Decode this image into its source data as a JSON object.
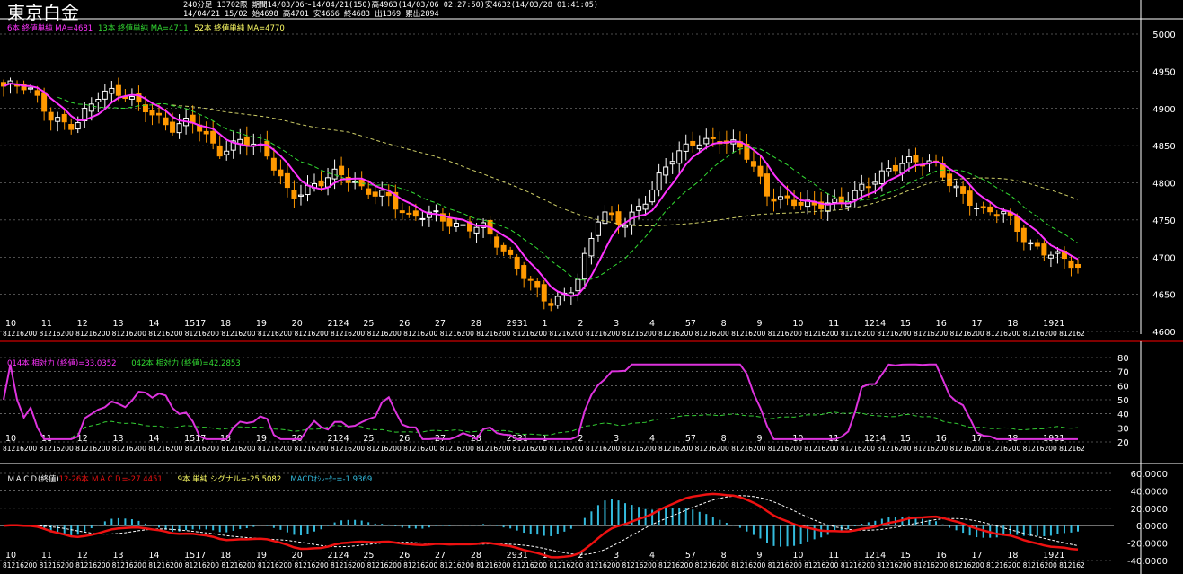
{
  "title": "東京白金",
  "header": {
    "line1": "240分足  13702限   期間14/03/06～14/04/21(150)高4963(14/03/06 02:27:50)安4632(14/03/28 01:41:05)",
    "line2": "14/04/21 15/02 始4698 高4701 安4666 終4683 出1369 累出2894"
  },
  "colors": {
    "background": "#000000",
    "up_candle": "#ffffff",
    "down_candle": "#ff9900",
    "ma6": "#ff33ff",
    "ma13": "#33dd33",
    "ma52": "#cccc66",
    "rsi14": "#dd33dd",
    "rsi42": "#33cc33",
    "macd": "#ee1111",
    "signal": "#ffffff",
    "histogram": "#33bbdd",
    "grid": "#9a9a9a",
    "axis": "#ffffff",
    "separator": "#ff0000"
  },
  "legends": {
    "price": [
      {
        "text": "6本 終値単純 MA=4681",
        "color": "#ff33ff"
      },
      {
        "text": "13本 終値単純 MA=4711",
        "color": "#33dd33"
      },
      {
        "text": "52本 終値単純 MA=4770",
        "color": "#ffff66"
      }
    ],
    "rsi": [
      {
        "text": "014本 相対力 (終値)=33.0352",
        "color": "#ff33ff"
      },
      {
        "text": "042本 相対力 (終値)=42.2853",
        "color": "#33dd33"
      }
    ],
    "macd": [
      {
        "text": "ＭＡＣＤ(終値)",
        "color": "#ffffff"
      },
      {
        "text": "12-26本 ＭＡＣＤ=-27.4451",
        "color": "#ee1111"
      },
      {
        "text": "9本 単純 シグナル=-25.5082",
        "color": "#ffff66"
      },
      {
        "text": "MACDｵｼﾚｰﾀｰ=-1.9369",
        "color": "#33bbdd"
      }
    ]
  },
  "axis": {
    "date_labels": [
      "10",
      "11",
      "12",
      "13",
      "14",
      "1517",
      "18",
      "19",
      "20",
      "2124",
      "25",
      "26",
      "27",
      "28",
      "2931",
      "1",
      "2",
      "3",
      "4",
      "57",
      "8",
      "9",
      "10",
      "11",
      "1214",
      "15",
      "16",
      "17",
      "18",
      "1921"
    ],
    "hour_strip": "81216200 81216200 81216200 81216200 81216200 81216200 81216200 81216200 81216200 81216200 81216200 81216200 81216200 81216200 81216200 81216200 81216200 81216200 81216200 81216200 81216200 81216200 81216200 81216200 81216200 81216200 81216200 81216200 81216200 812162"
  },
  "chart_data": [
    {
      "type": "candlestick",
      "panel": "price",
      "ylim": [
        4600,
        5000
      ],
      "y_ticks": [
        5000,
        4950,
        4900,
        4850,
        4800,
        4750,
        4700,
        4650,
        4600
      ],
      "key_closes": [
        4930,
        4925,
        4890,
        4880,
        4915,
        4920,
        4905,
        4870,
        4880,
        4845,
        4860,
        4835,
        4785,
        4800,
        4810,
        4790,
        4790,
        4750,
        4755,
        4745,
        4745,
        4700,
        4670,
        4640,
        4660,
        4760,
        4750,
        4780,
        4830,
        4860,
        4860,
        4840,
        4785,
        4780,
        4765,
        4770,
        4800,
        4815,
        4825,
        4830,
        4790,
        4755,
        4760,
        4720,
        4700,
        4683
      ],
      "series": [
        {
          "name": "6本 終値単純 MA",
          "last": 4681
        },
        {
          "name": "13本 終値単純 MA",
          "last": 4711
        },
        {
          "name": "52本 終値単純 MA",
          "last": 4770
        }
      ]
    },
    {
      "type": "line",
      "panel": "rsi",
      "ylim": [
        20,
        80
      ],
      "y_ticks": [
        80,
        70,
        60,
        50,
        40,
        30,
        20
      ],
      "series": [
        {
          "name": "014本 相対力 (終値)",
          "last": 33.0352
        },
        {
          "name": "042本 相対力 (終値)",
          "last": 42.2853
        }
      ]
    },
    {
      "type": "line",
      "panel": "macd",
      "ylim": [
        -40,
        60
      ],
      "y_ticks": [
        "60.0000",
        "40.0000",
        "20.0000",
        "0.0000",
        "-20.0000",
        "-40.0000"
      ],
      "series": [
        {
          "name": "12-26本 ＭＡＣＤ",
          "last": -27.4451
        },
        {
          "name": "9本 単純 シグナル",
          "last": -25.5082
        },
        {
          "name": "MACDｵｼﾚｰﾀｰ",
          "last": -1.9369
        }
      ]
    }
  ]
}
